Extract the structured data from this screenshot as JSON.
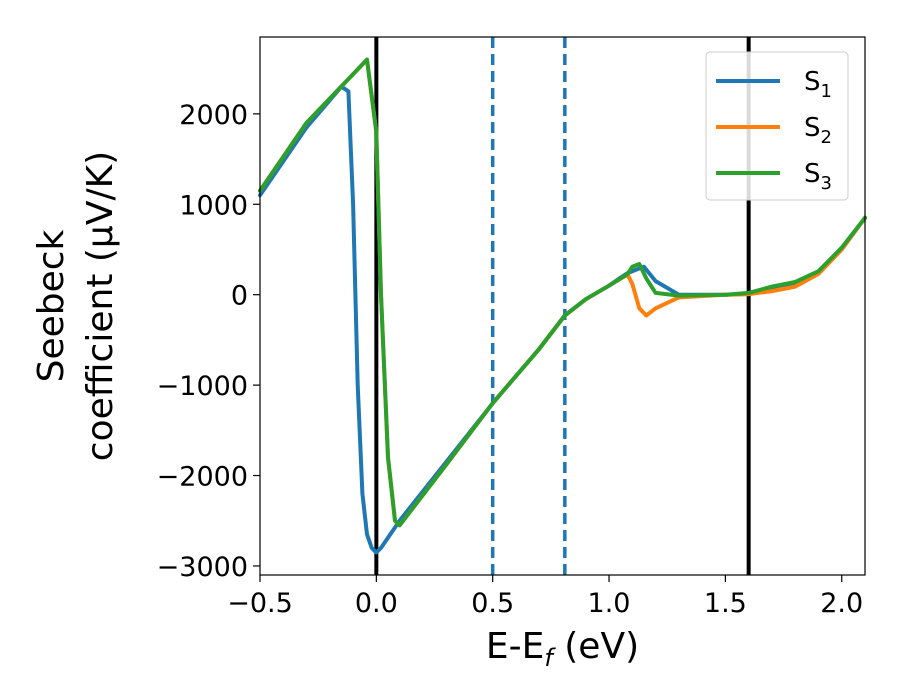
{
  "chart_data": {
    "type": "line",
    "title": "",
    "xlabel": {
      "main": "E-E",
      "sub": "f",
      "unit": " (eV)"
    },
    "ylabel": {
      "line1": "Seebeck",
      "line2": "coefficient  (μV/K)"
    },
    "xlim": [
      -0.5,
      2.1
    ],
    "ylim": [
      -3100,
      2850
    ],
    "xticks": [
      -0.5,
      0.0,
      0.5,
      1.0,
      1.5,
      2.0
    ],
    "xtick_labels": [
      "−0.5",
      "0.0",
      "0.5",
      "1.0",
      "1.5",
      "2.0"
    ],
    "yticks": [
      -3000,
      -2000,
      -1000,
      0,
      1000,
      2000
    ],
    "ytick_labels": [
      "−3000",
      "−2000",
      "−1000",
      "0",
      "1000",
      "2000"
    ],
    "grid": false,
    "legend_position": "top-right",
    "vlines": [
      {
        "x": 0.0,
        "style": "solid",
        "color": "#000000"
      },
      {
        "x": 1.6,
        "style": "solid",
        "color": "#000000"
      },
      {
        "x": 0.5,
        "style": "dashed",
        "color": "#1f77b4"
      },
      {
        "x": 0.81,
        "style": "dashed",
        "color": "#1f77b4"
      }
    ],
    "series": [
      {
        "name": "S",
        "sub": "1",
        "color": "#1f77b4",
        "x": [
          -0.5,
          -0.3,
          -0.15,
          -0.12,
          -0.1,
          -0.08,
          -0.06,
          -0.04,
          -0.02,
          0.0,
          0.02,
          0.1,
          0.3,
          0.5,
          0.7,
          0.81,
          0.9,
          1.0,
          1.05,
          1.08,
          1.1,
          1.12,
          1.15,
          1.2,
          1.3,
          1.5,
          1.6,
          1.7,
          1.8,
          1.9,
          2.0,
          2.1
        ],
        "y": [
          1100,
          1850,
          2300,
          2250,
          1000,
          -1000,
          -2200,
          -2650,
          -2800,
          -2850,
          -2800,
          -2500,
          -1850,
          -1200,
          -600,
          -230,
          -50,
          100,
          190,
          240,
          260,
          280,
          310,
          150,
          0,
          0,
          10,
          50,
          100,
          250,
          500,
          850
        ]
      },
      {
        "name": "S",
        "sub": "2",
        "color": "#ff7f0e",
        "x": [
          -0.5,
          -0.3,
          -0.04,
          0.0,
          0.02,
          0.05,
          0.08,
          0.1,
          0.3,
          0.5,
          0.7,
          0.81,
          0.9,
          1.0,
          1.05,
          1.08,
          1.1,
          1.13,
          1.16,
          1.2,
          1.3,
          1.5,
          1.6,
          1.7,
          1.8,
          1.9,
          2.0,
          2.1
        ],
        "y": [
          1150,
          1900,
          2600,
          1800,
          0,
          -1800,
          -2500,
          -2550,
          -1880,
          -1200,
          -600,
          -230,
          -50,
          100,
          180,
          220,
          120,
          -150,
          -230,
          -150,
          -30,
          0,
          5,
          40,
          90,
          230,
          500,
          850
        ]
      },
      {
        "name": "S",
        "sub": "3",
        "color": "#2ca02c",
        "x": [
          -0.5,
          -0.3,
          -0.04,
          0.0,
          0.02,
          0.05,
          0.08,
          0.1,
          0.3,
          0.5,
          0.7,
          0.81,
          0.9,
          1.0,
          1.05,
          1.08,
          1.1,
          1.13,
          1.16,
          1.2,
          1.3,
          1.5,
          1.6,
          1.7,
          1.8,
          1.9,
          2.0,
          2.1
        ],
        "y": [
          1150,
          1900,
          2600,
          1800,
          0,
          -1800,
          -2500,
          -2550,
          -1880,
          -1200,
          -600,
          -230,
          -50,
          100,
          180,
          230,
          310,
          340,
          180,
          20,
          -10,
          0,
          20,
          90,
          140,
          260,
          520,
          850
        ]
      }
    ]
  }
}
